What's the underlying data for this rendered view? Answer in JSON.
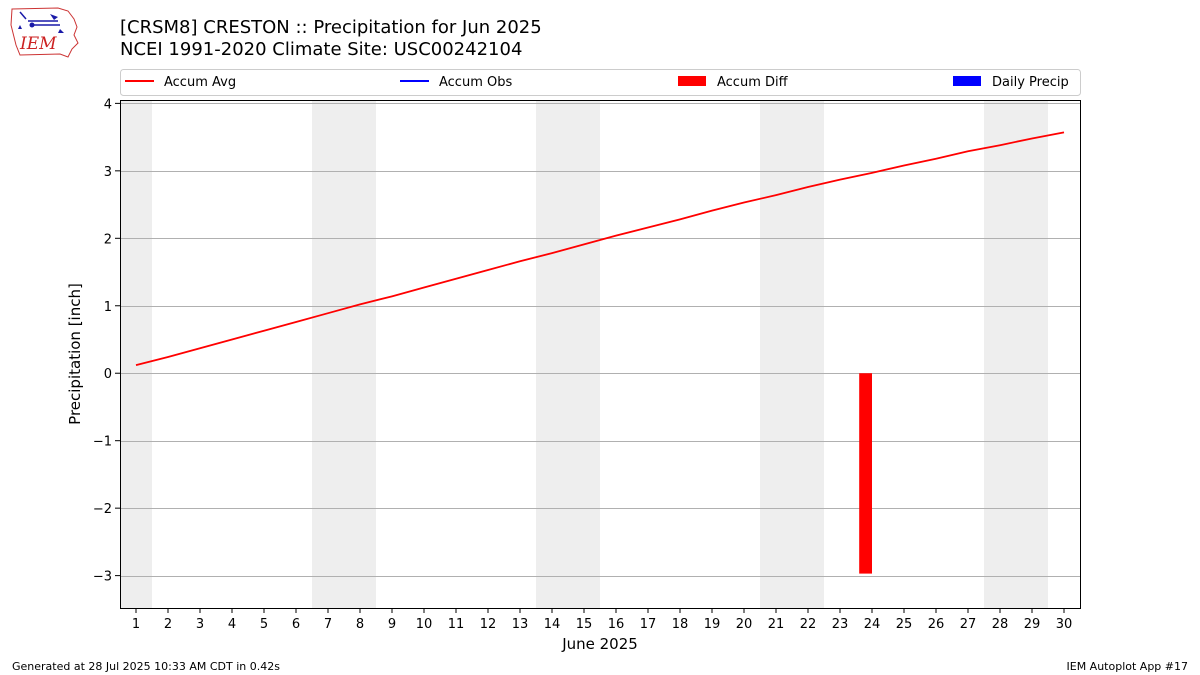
{
  "header": {
    "title": "[CRSM8] CRESTON :: Precipitation for Jun 2025",
    "subtitle": "NCEI 1991-2020 Climate Site: USC00242104",
    "logo_text": "IEM"
  },
  "footer": {
    "generated": "Generated at 28 Jul 2025 10:33 AM CDT in 0.42s",
    "app": "IEM Autoplot App #17"
  },
  "colors": {
    "accum_avg": "#ff0000",
    "accum_obs": "#0000ff",
    "accum_diff": "#ff0000",
    "daily_precip": "#0000ff",
    "weekend_band": "#eeeeee",
    "grid": "#b0b0b0"
  },
  "chart_data": {
    "type": "line",
    "xlabel": "June 2025",
    "ylabel": "Precipitation [inch]",
    "xlim": [
      0.5,
      30.5
    ],
    "ylim": [
      -3.48,
      4.05
    ],
    "yticks": [
      -3,
      -2,
      -1,
      0,
      1,
      2,
      3,
      4
    ],
    "ytick_labels": [
      "−3",
      "−2",
      "−1",
      "0",
      "1",
      "2",
      "3",
      "4"
    ],
    "x": [
      1,
      2,
      3,
      4,
      5,
      6,
      7,
      8,
      9,
      10,
      11,
      12,
      13,
      14,
      15,
      16,
      17,
      18,
      19,
      20,
      21,
      22,
      23,
      24,
      25,
      26,
      27,
      28,
      29,
      30
    ],
    "x_tick_labels": [
      "1",
      "2",
      "3",
      "4",
      "5",
      "6",
      "7",
      "8",
      "9",
      "10",
      "11",
      "12",
      "13",
      "14",
      "15",
      "16",
      "17",
      "18",
      "19",
      "20",
      "21",
      "22",
      "23",
      "24",
      "25",
      "26",
      "27",
      "28",
      "29",
      "30"
    ],
    "weekend_days": [
      1,
      7,
      8,
      14,
      15,
      21,
      22,
      28,
      29
    ],
    "grid": "y",
    "legend": {
      "placement": "top",
      "entries": [
        {
          "label": "Accum Avg",
          "kind": "line",
          "color": "#ff0000"
        },
        {
          "label": "Accum Obs",
          "kind": "line",
          "color": "#0000ff"
        },
        {
          "label": "Accum Diff",
          "kind": "bar",
          "color": "#ff0000"
        },
        {
          "label": "Daily Precip",
          "kind": "bar",
          "color": "#0000ff"
        }
      ]
    },
    "series": [
      {
        "name": "Accum Avg",
        "kind": "line",
        "color": "#ff0000",
        "values": [
          0.12,
          0.24,
          0.37,
          0.5,
          0.63,
          0.76,
          0.89,
          1.02,
          1.14,
          1.27,
          1.4,
          1.53,
          1.66,
          1.78,
          1.91,
          2.04,
          2.16,
          2.28,
          2.41,
          2.53,
          2.64,
          2.76,
          2.87,
          2.97,
          3.08,
          3.18,
          3.29,
          3.38,
          3.48,
          3.57
        ]
      },
      {
        "name": "Accum Diff",
        "kind": "bar",
        "color": "#ff0000",
        "points": [
          {
            "x": 23.8,
            "value": -2.97
          }
        ]
      }
    ]
  }
}
